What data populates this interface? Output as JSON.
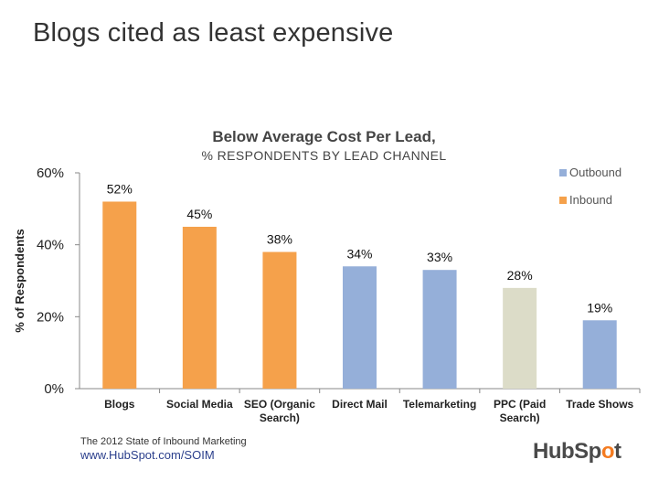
{
  "slide": {
    "title": "Blogs cited as least expensive"
  },
  "chart_data": {
    "type": "bar",
    "title": "Below Average Cost Per Lead,",
    "subtitle": "% RESPONDENTS BY LEAD CHANNEL",
    "ylabel": "% of Respondents",
    "xlabel": "",
    "ylim": [
      0,
      60
    ],
    "yticks": [
      "0%",
      "20%",
      "40%",
      "60%"
    ],
    "ytick_values": [
      0,
      20,
      40,
      60
    ],
    "grid": false,
    "legend_position": "top-right",
    "legend": [
      {
        "name": "Outbound",
        "color": "#95afd9"
      },
      {
        "name": "Inbound",
        "color": "#f5a14b"
      }
    ],
    "categories": [
      [
        "Blogs"
      ],
      [
        "Social Media"
      ],
      [
        "SEO (Organic",
        "Search)"
      ],
      [
        "Direct Mail"
      ],
      [
        "Telemarketing"
      ],
      [
        "PPC (Paid",
        "Search)"
      ],
      [
        "Trade Shows"
      ]
    ],
    "values": [
      52,
      45,
      38,
      34,
      33,
      28,
      19
    ],
    "value_labels": [
      "52%",
      "45%",
      "38%",
      "34%",
      "33%",
      "28%",
      "19%"
    ],
    "bar_colors": [
      "#f5a14b",
      "#f5a14b",
      "#f5a14b",
      "#95afd9",
      "#95afd9",
      "#dcdcc8",
      "#95afd9"
    ]
  },
  "footer": {
    "line1": "The 2012 State of Inbound Marketing",
    "line2": "www.HubSpot.com/SOIM"
  },
  "logo": {
    "text_before": "HubSp",
    "text_mark": "o",
    "text_after": "t"
  }
}
